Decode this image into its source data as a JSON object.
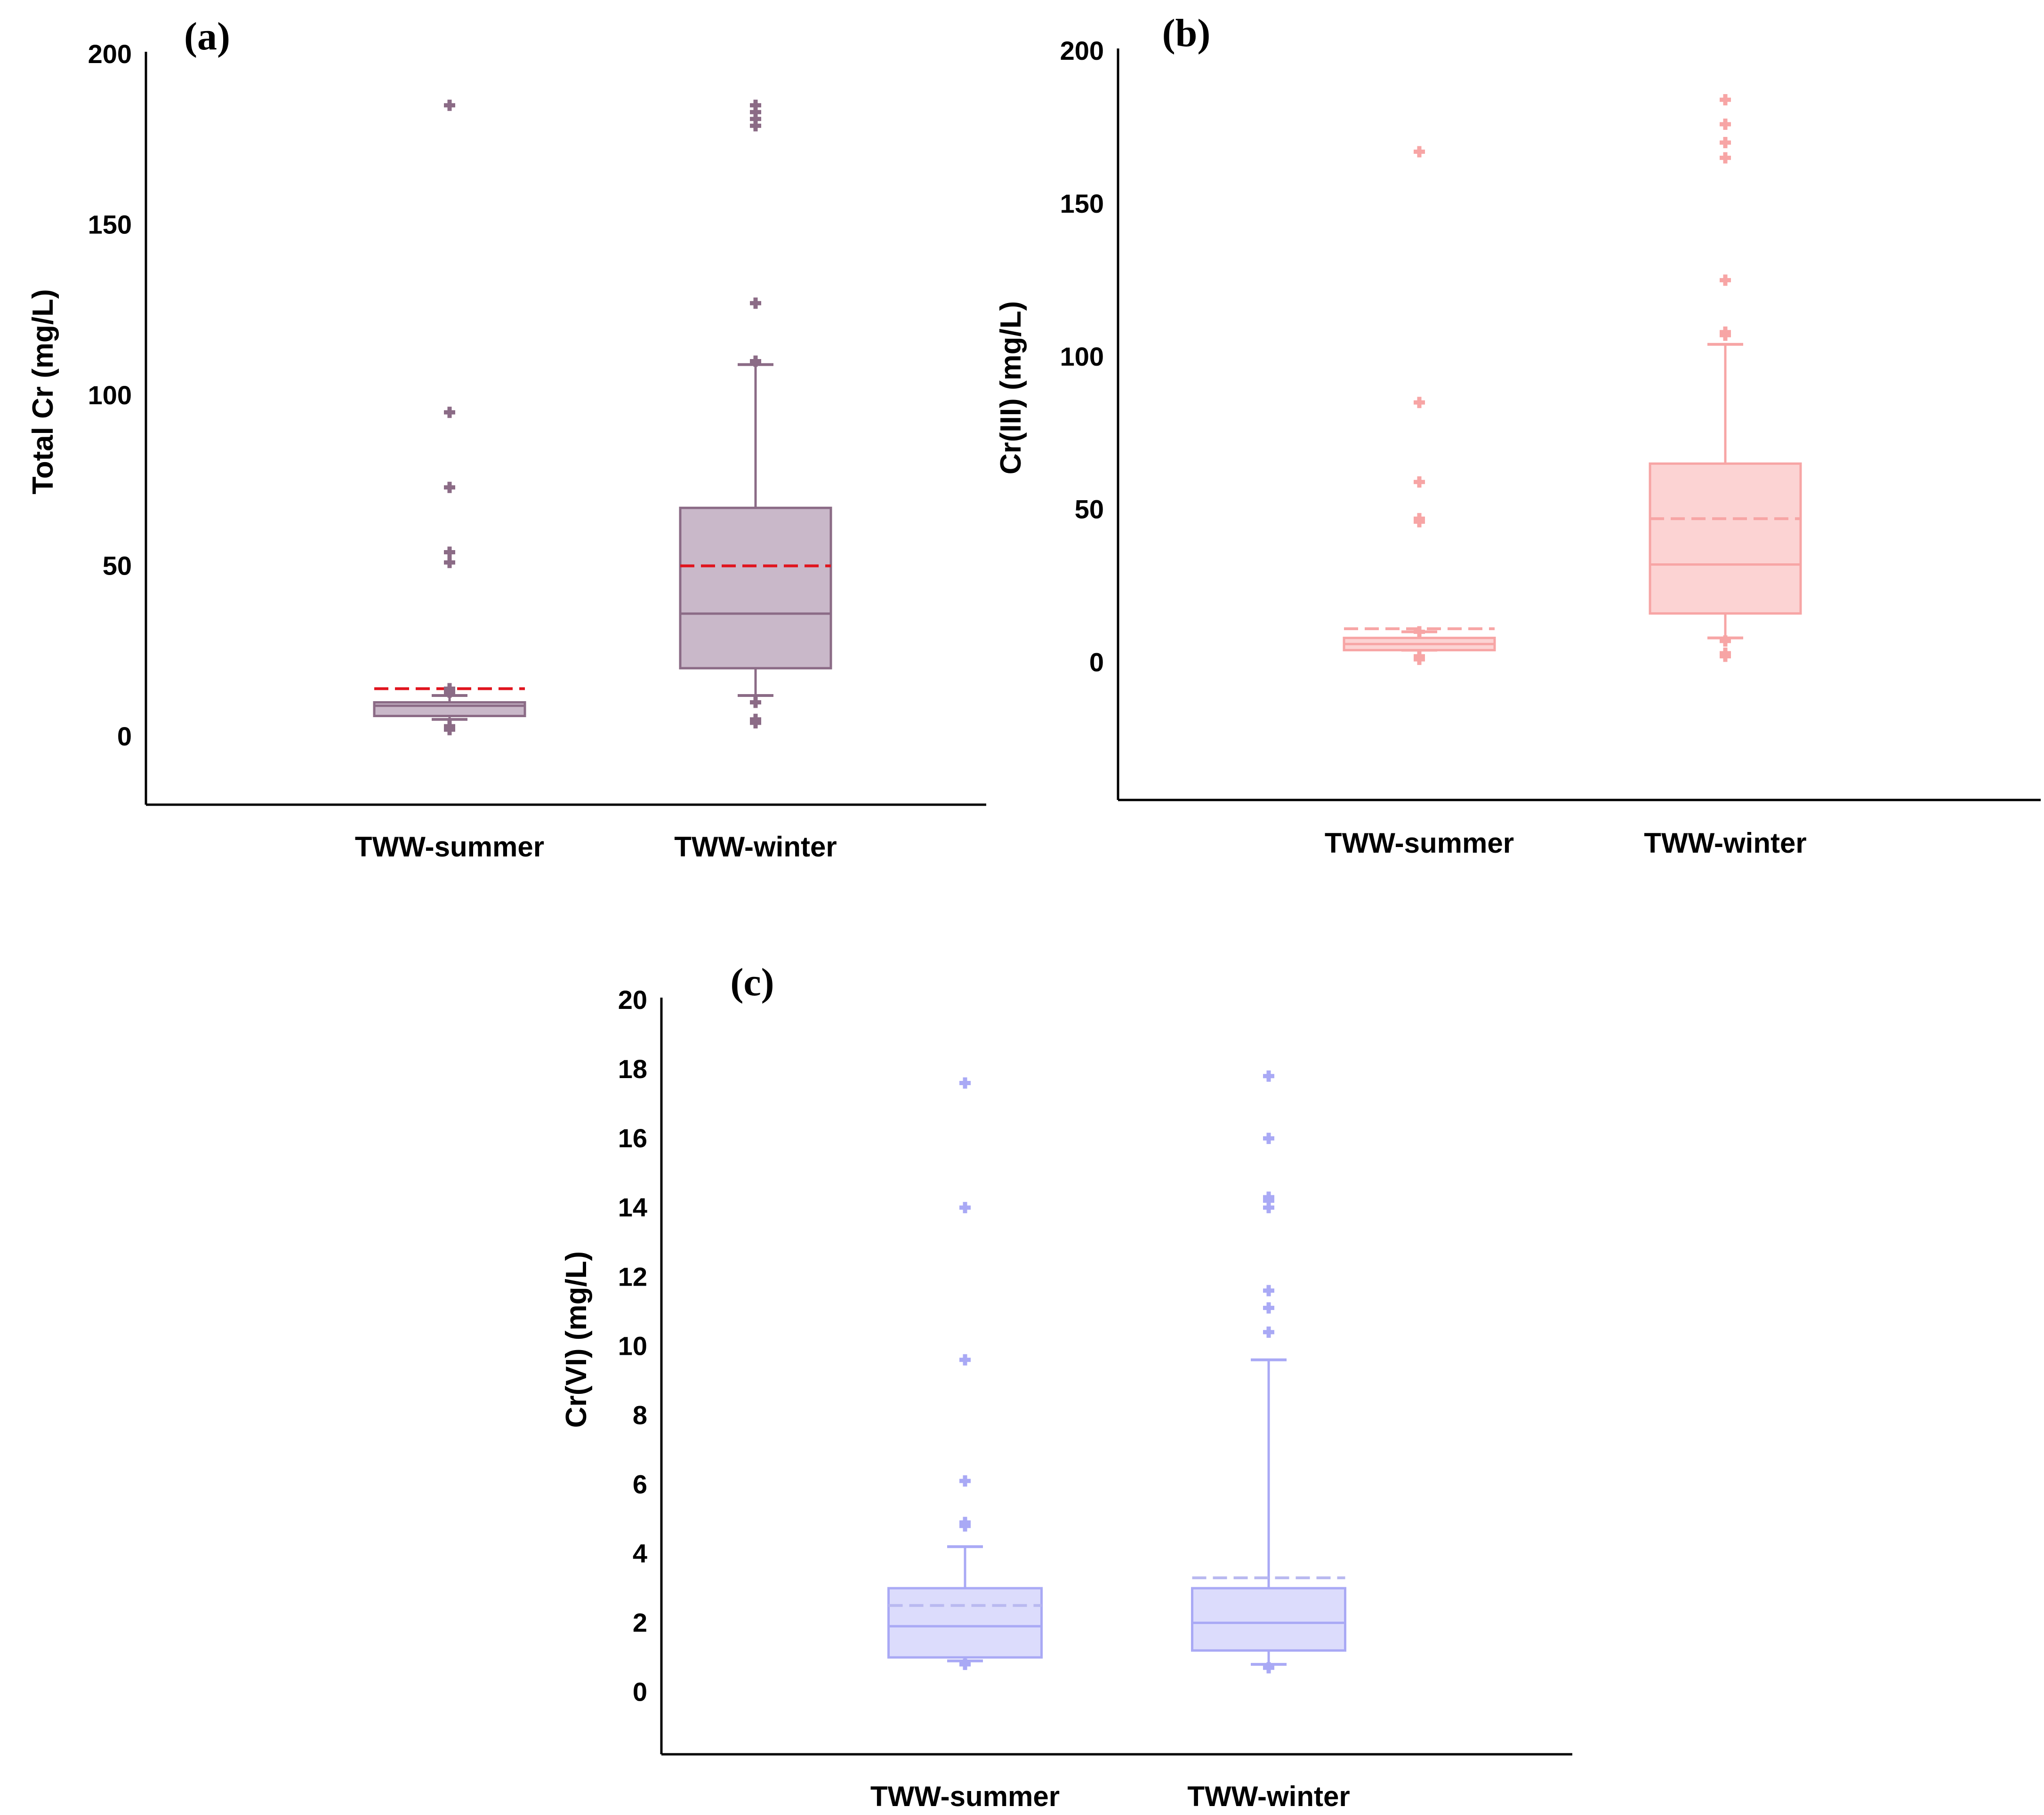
{
  "chart_data": [
    {
      "panel": "(a)",
      "type": "box",
      "ylabel": "Total Cr (mg/L)",
      "ylim": [
        -20,
        200
      ],
      "yticks": [
        0,
        50,
        100,
        150,
        200
      ],
      "categories": [
        "TWW-summer",
        "TWW-winter"
      ],
      "style": {
        "box_fill": "#c9b8c9",
        "stroke": "#8b6b86",
        "mean_color": "#e0141e",
        "outlier_color": "#8b6b86"
      },
      "boxes": [
        {
          "category": "TWW-summer",
          "whisker_low": 5,
          "q1": 6,
          "median": 9,
          "q3": 10,
          "whisker_high": 12,
          "mean": 14,
          "outliers": [
            185,
            95,
            73,
            54,
            51,
            14,
            13,
            3,
            2
          ]
        },
        {
          "category": "TWW-winter",
          "whisker_low": 12,
          "q1": 20,
          "median": 36,
          "q3": 67,
          "whisker_high": 109,
          "mean": 50,
          "outliers": [
            185,
            183,
            181,
            179,
            127,
            110,
            10,
            5,
            4
          ]
        }
      ]
    },
    {
      "panel": "(b)",
      "type": "box",
      "ylabel": "Cr(III) (mg/L)",
      "ylim": [
        -45,
        200
      ],
      "yticks": [
        0,
        50,
        100,
        150,
        200
      ],
      "categories": [
        "TWW-summer",
        "TWW-winter"
      ],
      "style": {
        "box_fill": "#fcd3d3",
        "stroke": "#f7a5a5",
        "mean_color": "#f7a5a5",
        "outlier_color": "#f7a5a5"
      },
      "boxes": [
        {
          "category": "TWW-summer",
          "whisker_low": 4,
          "q1": 4,
          "median": 6,
          "q3": 8,
          "whisker_high": 10,
          "mean": 11,
          "outliers": [
            167,
            85,
            59,
            47,
            46,
            10,
            2,
            1
          ]
        },
        {
          "category": "TWW-winter",
          "whisker_low": 8,
          "q1": 16,
          "median": 32,
          "q3": 65,
          "whisker_high": 104,
          "mean": 47,
          "outliers": [
            184,
            176,
            170,
            165,
            125,
            108,
            107,
            7,
            3,
            2
          ]
        }
      ]
    },
    {
      "panel": "(c)",
      "type": "box",
      "ylabel": "Cr(VI) (mg/L)",
      "ylim": [
        -1.8,
        20
      ],
      "yticks": [
        0,
        2,
        4,
        6,
        8,
        10,
        12,
        14,
        16,
        18,
        20
      ],
      "categories": [
        "TWW-summer",
        "TWW-winter"
      ],
      "style": {
        "box_fill": "#dcdcfc",
        "stroke": "#a9a9f5",
        "mean_color": "#b9b9f0",
        "outlier_color": "#a9a9f5"
      },
      "boxes": [
        {
          "category": "TWW-summer",
          "whisker_low": 0.9,
          "q1": 1.0,
          "median": 1.9,
          "q3": 3.0,
          "whisker_high": 4.2,
          "mean": 2.5,
          "outliers": [
            17.6,
            14.0,
            9.6,
            6.1,
            4.9,
            4.8,
            0.8
          ]
        },
        {
          "category": "TWW-winter",
          "whisker_low": 0.8,
          "q1": 1.2,
          "median": 2.0,
          "q3": 3.0,
          "whisker_high": 9.6,
          "mean": 3.3,
          "outliers": [
            17.8,
            16.0,
            14.3,
            14.2,
            14.0,
            11.6,
            11.1,
            10.4,
            0.7
          ]
        }
      ]
    }
  ]
}
